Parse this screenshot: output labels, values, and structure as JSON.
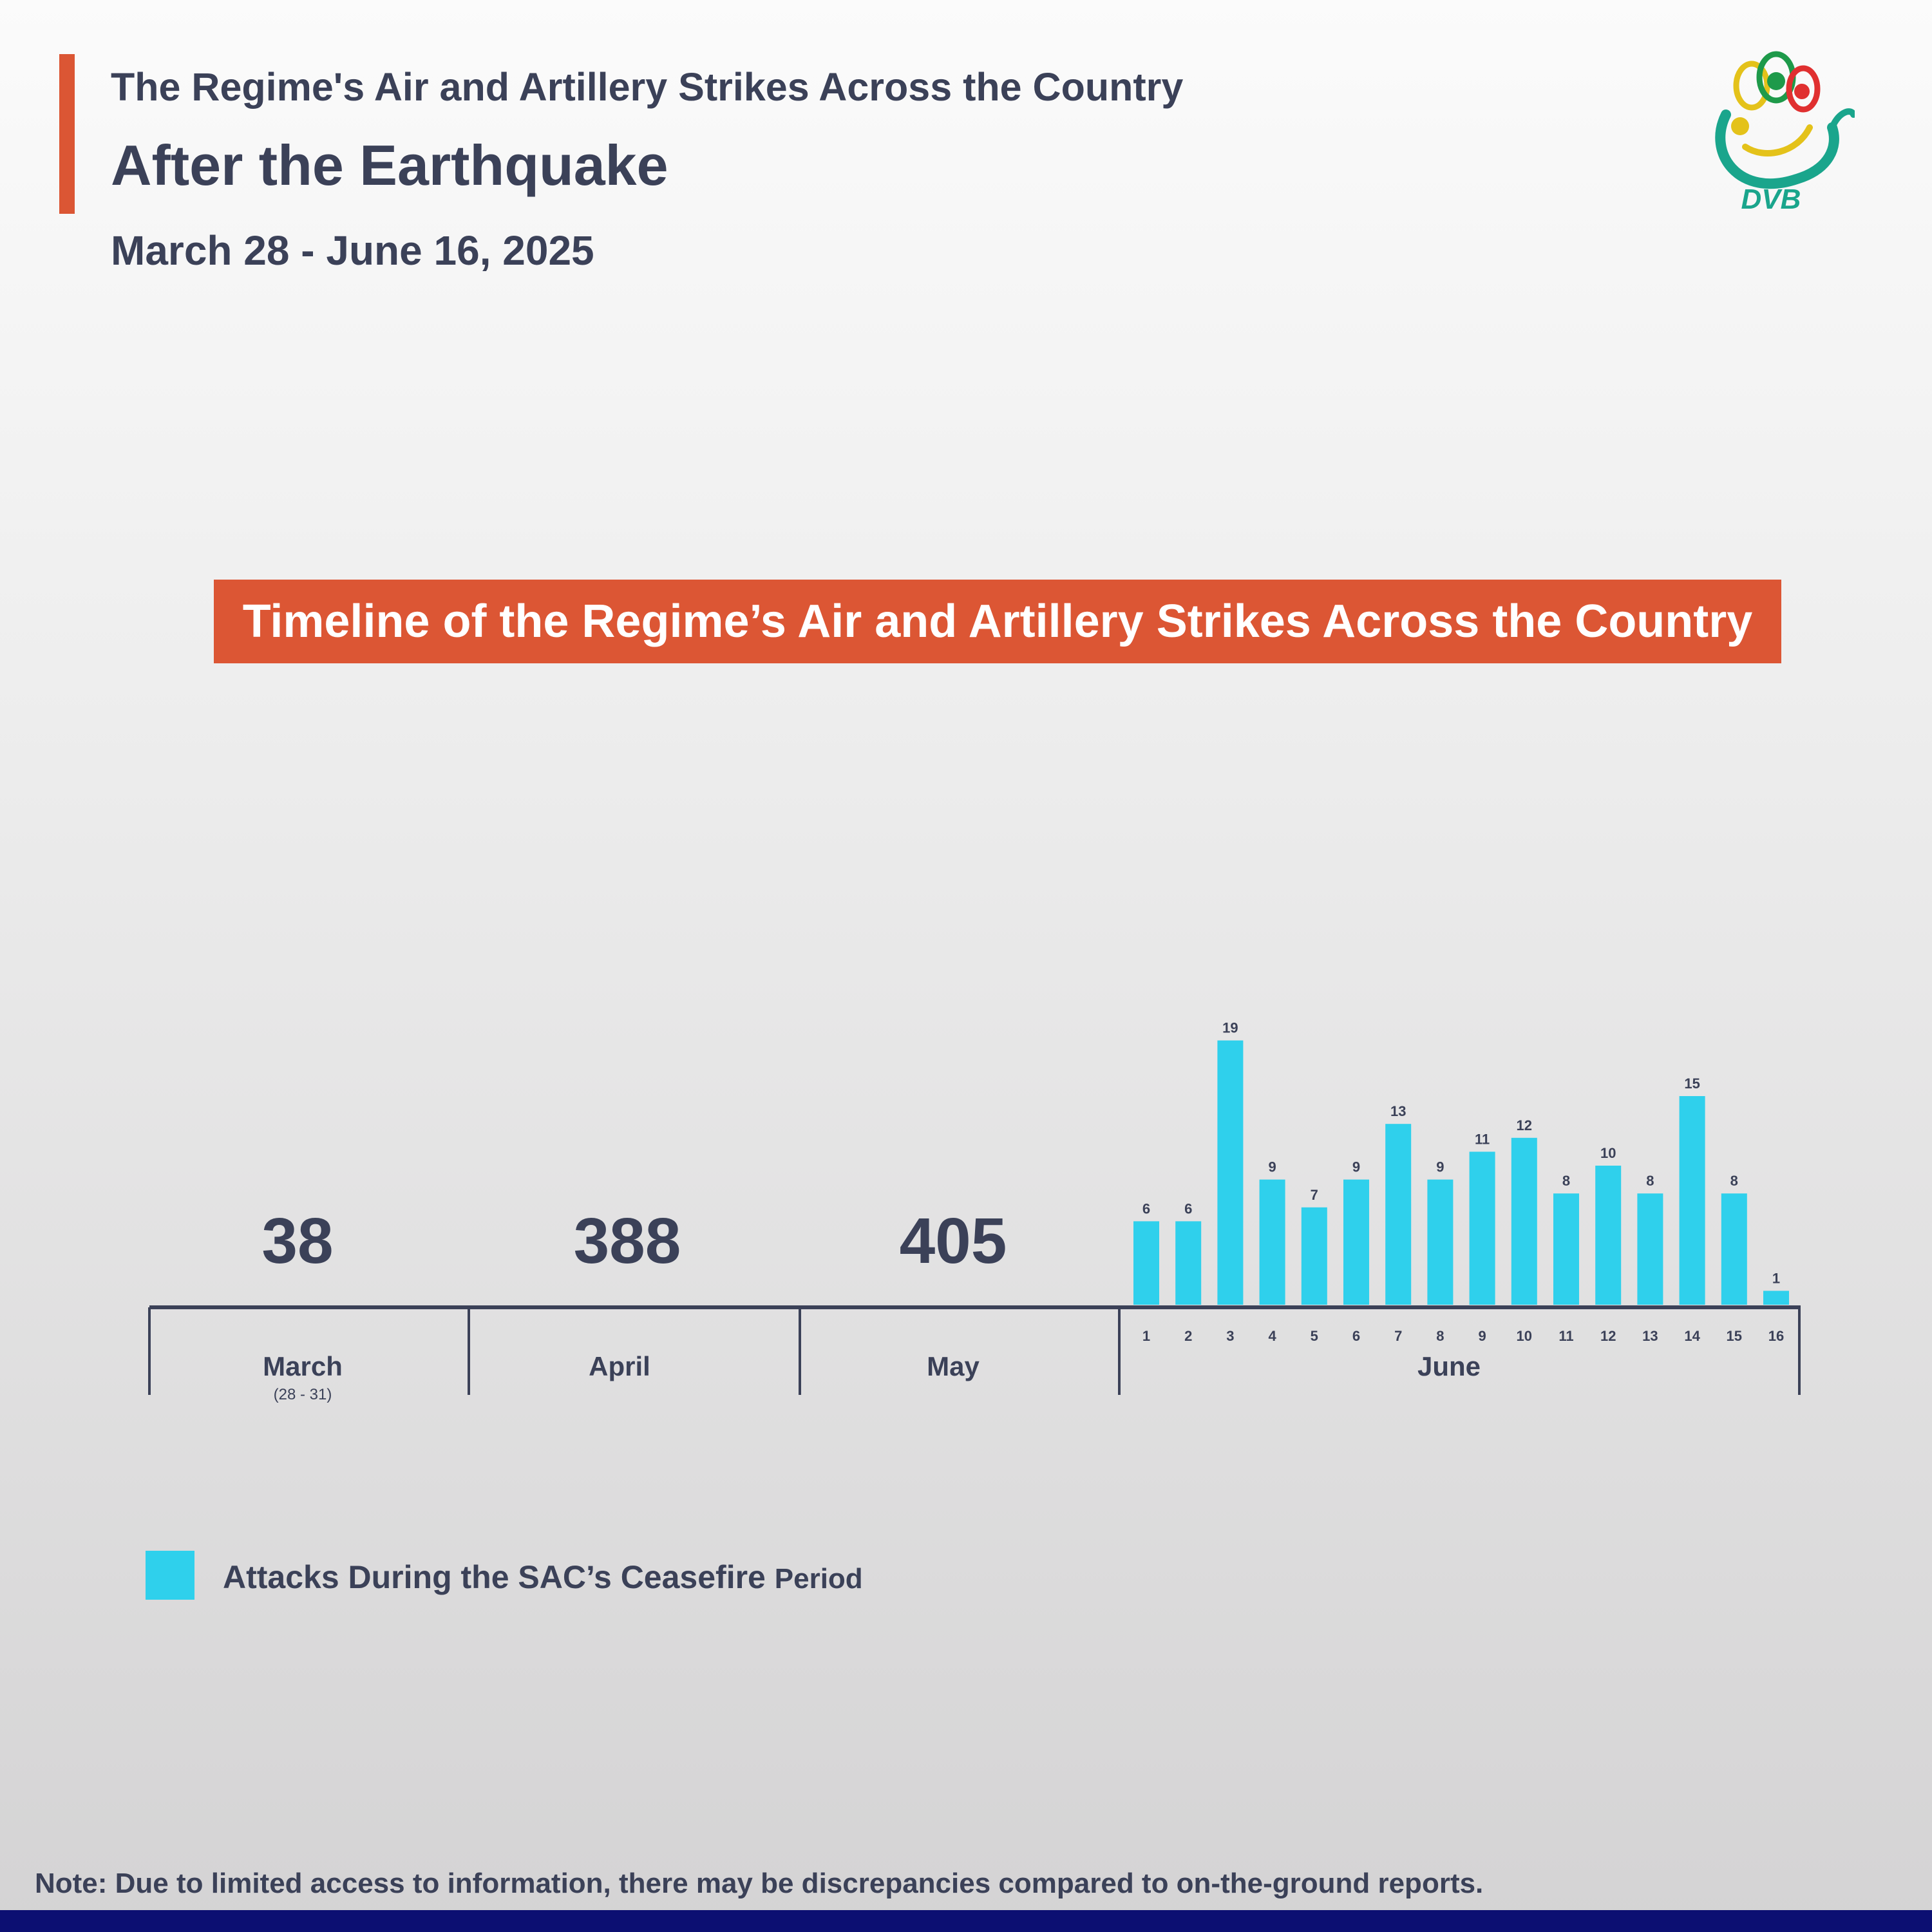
{
  "header": {
    "top_title": "The Regime's Air and Artillery Strikes Across the Country",
    "main_title": "After the Earthquake",
    "date_range": "March 28 - June 16, 2025",
    "logo_text": "DVB",
    "accent_color": "#db5634"
  },
  "banner": {
    "text": "Timeline of the Regime’s Air and Artillery Strikes Across the Country",
    "color": "#dc5634"
  },
  "chart_data": {
    "type": "bar",
    "monthly_totals": [
      {
        "month": "March",
        "sublabel": "(28 - 31)",
        "value": "38"
      },
      {
        "month": "April",
        "sublabel": "",
        "value": "388"
      },
      {
        "month": "May",
        "sublabel": "",
        "value": "405"
      }
    ],
    "june": {
      "month": "June",
      "categories": [
        "1",
        "2",
        "3",
        "4",
        "5",
        "6",
        "7",
        "8",
        "9",
        "10",
        "11",
        "12",
        "13",
        "14",
        "15",
        "16"
      ],
      "values": [
        6,
        6,
        19,
        9,
        7,
        9,
        13,
        9,
        11,
        12,
        8,
        10,
        8,
        15,
        8,
        1
      ],
      "bar_color": "#2fd0ec"
    },
    "legend": [
      {
        "label_main": "Attacks During the SAC’s Ceasefire",
        "label_small": "Period",
        "color": "#2fd0ec"
      }
    ]
  },
  "footer": {
    "note": "Note: Due to limited access to information, there may be discrepancies compared to on-the-ground reports.",
    "bar_color": "#0c0f72"
  }
}
